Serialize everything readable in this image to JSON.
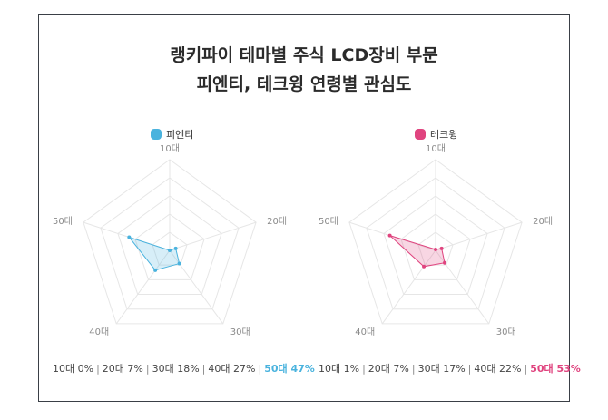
{
  "title": {
    "line1": "랭키파이 테마별 주식 LCD장비 부문",
    "line2": "피엔티, 테크윙 연령별 관심도"
  },
  "chart_data": [
    {
      "type": "radar",
      "legend": "피엔티",
      "color": "#4ab3de",
      "axes": [
        "10대",
        "20대",
        "30대",
        "40대",
        "50대"
      ],
      "values": [
        0,
        7,
        18,
        27,
        47
      ],
      "max": 100,
      "summary": [
        "10대 0%",
        "20대 7%",
        "30대 18%",
        "40대 27%",
        "50대 47%"
      ],
      "highlight_index": 4
    },
    {
      "type": "radar",
      "legend": "테크윙",
      "color": "#e0447f",
      "axes": [
        "10대",
        "20대",
        "30대",
        "40대",
        "50대"
      ],
      "values": [
        1,
        7,
        17,
        22,
        53
      ],
      "max": 100,
      "summary": [
        "10대 1%",
        "20대 7%",
        "30대 17%",
        "40대 22%",
        "50대 53%"
      ],
      "highlight_index": 4
    }
  ]
}
